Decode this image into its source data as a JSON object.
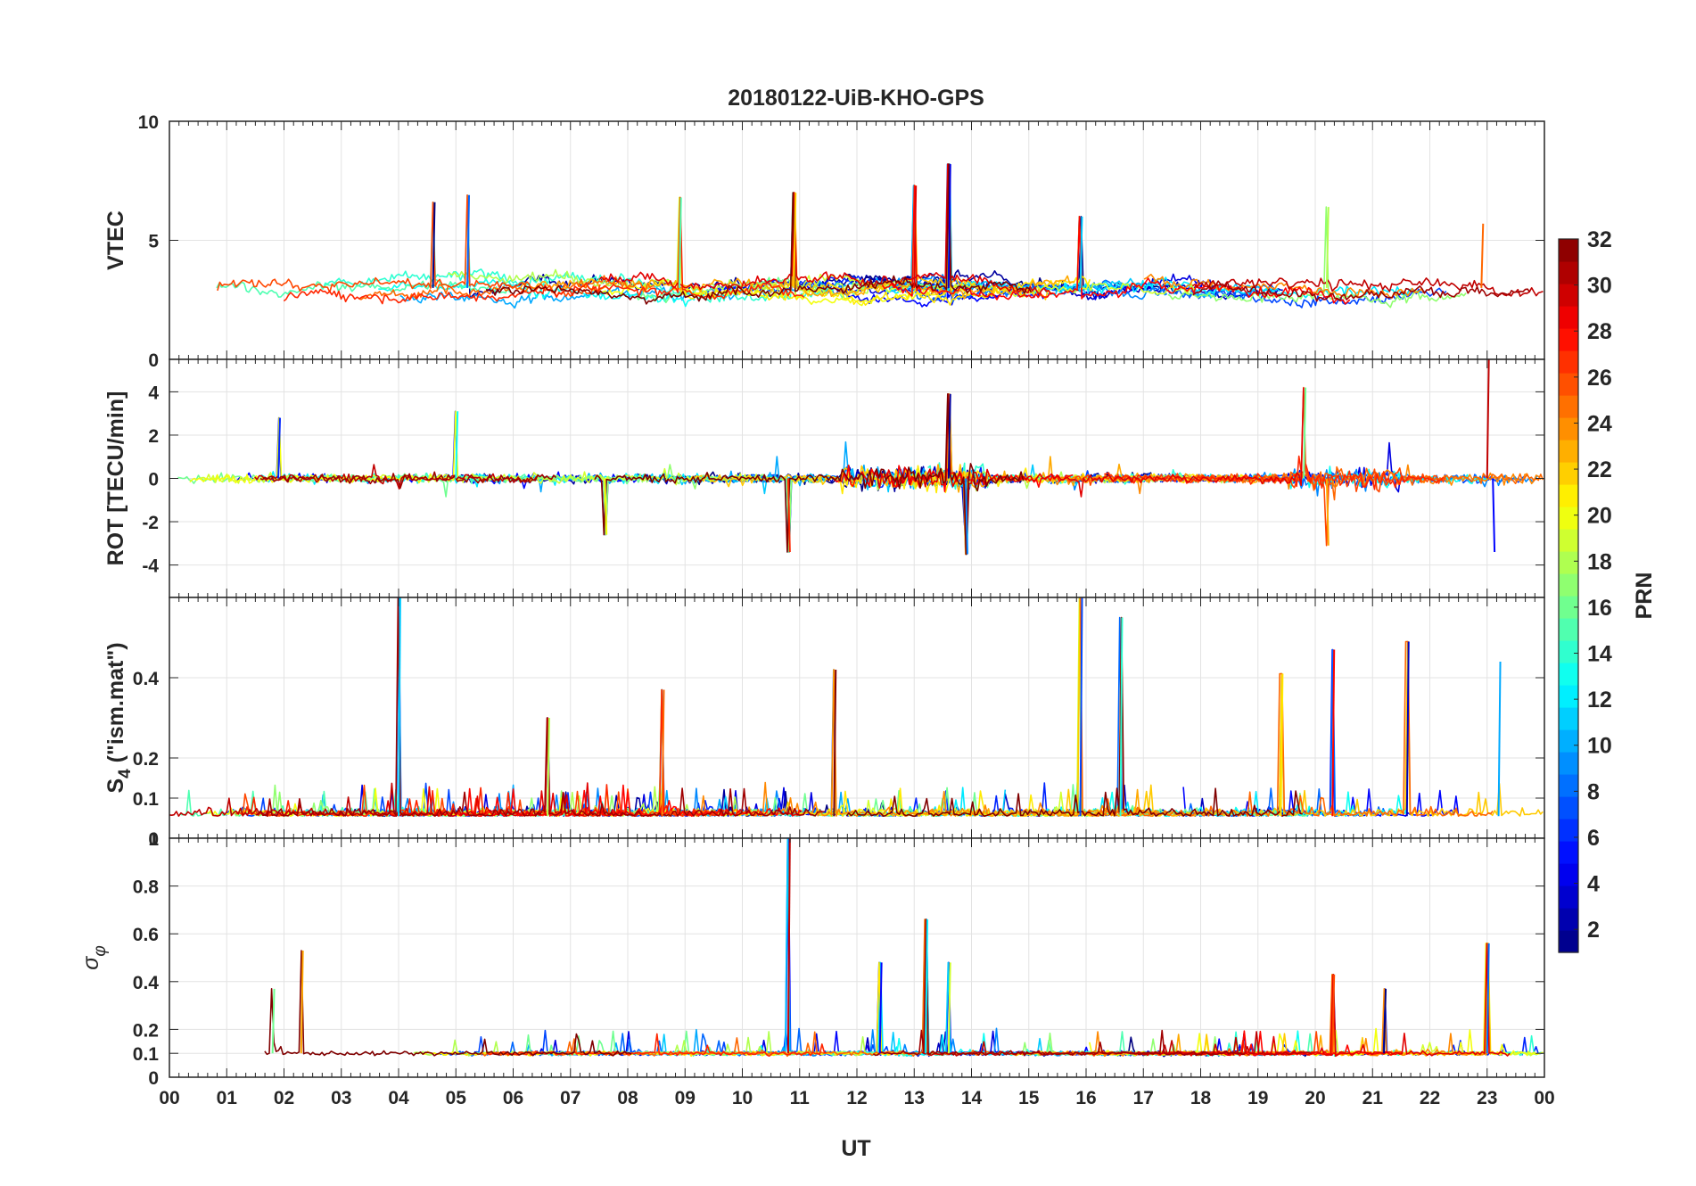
{
  "chart_data": {
    "type": "line",
    "title": "20180122-UiB-KHO-GPS",
    "xlabel": "UT",
    "x_range": [
      0,
      24
    ],
    "x_tick_labels": [
      "00",
      "01",
      "02",
      "03",
      "04",
      "05",
      "06",
      "07",
      "08",
      "09",
      "10",
      "11",
      "12",
      "13",
      "14",
      "15",
      "16",
      "17",
      "18",
      "19",
      "20",
      "21",
      "22",
      "23",
      "00"
    ],
    "grid": true,
    "colorbar": {
      "label": "PRN",
      "range": [
        1,
        32
      ],
      "tick_labels": [
        "2",
        "4",
        "6",
        "8",
        "10",
        "12",
        "14",
        "16",
        "18",
        "20",
        "22",
        "24",
        "26",
        "28",
        "30",
        "32"
      ],
      "colormap": [
        "#00008f",
        "#0000ff",
        "#0080ff",
        "#00ffff",
        "#80ff80",
        "#ffff00",
        "#ff8000",
        "#ff0000",
        "#800000"
      ]
    },
    "panels": [
      {
        "id": "vtec",
        "ylabel": "VTEC",
        "ylim": [
          0,
          10
        ],
        "y_ticks": [
          0,
          5,
          10
        ],
        "y_tick_labels": [
          "0",
          "5",
          "10"
        ],
        "baseline": 3.0,
        "spikes": [
          {
            "t": 4.6,
            "v": 6.6
          },
          {
            "t": 5.2,
            "v": 6.9
          },
          {
            "t": 8.9,
            "v": 6.8
          },
          {
            "t": 10.9,
            "v": 7.0
          },
          {
            "t": 13.0,
            "v": 7.3
          },
          {
            "t": 13.6,
            "v": 8.2
          },
          {
            "t": 15.9,
            "v": 6.0
          },
          {
            "t": 20.2,
            "v": 6.4
          },
          {
            "t": 22.9,
            "v": 5.7
          }
        ]
      },
      {
        "id": "rot",
        "ylabel": "ROT [TECU/min]",
        "ylim": [
          -5.5,
          5.5
        ],
        "y_ticks": [
          -4,
          -2,
          0,
          2,
          4
        ],
        "y_tick_labels": [
          "-4",
          "-2",
          "0",
          "2",
          "4"
        ],
        "baseline": 0,
        "spikes": [
          {
            "t": 1.9,
            "v": 2.8
          },
          {
            "t": 5.0,
            "v": 3.1
          },
          {
            "t": 7.6,
            "v": -2.6
          },
          {
            "t": 10.8,
            "v": -3.4
          },
          {
            "t": 13.6,
            "v": 3.9
          },
          {
            "t": 13.9,
            "v": -3.5
          },
          {
            "t": 19.8,
            "v": 4.2
          },
          {
            "t": 20.2,
            "v": -3.1
          },
          {
            "t": 23.0,
            "v": 5.5
          },
          {
            "t": 23.1,
            "v": -3.4
          }
        ]
      },
      {
        "id": "s4",
        "ylabel": "S4 (\"ism.mat\")",
        "ylabel_main": "S",
        "ylabel_sub": "4",
        "ylabel_rest": " (\"ism.mat\")",
        "ylim": [
          0,
          0.6
        ],
        "y_ticks": [
          0,
          0.1,
          0.2,
          0.4
        ],
        "y_tick_labels": [
          "0",
          "0.1",
          "0.2",
          "0.4"
        ],
        "baseline": 0.055,
        "spikes": [
          {
            "t": 4.0,
            "v": 0.6
          },
          {
            "t": 6.6,
            "v": 0.3
          },
          {
            "t": 8.6,
            "v": 0.37
          },
          {
            "t": 11.6,
            "v": 0.42
          },
          {
            "t": 15.9,
            "v": 0.6
          },
          {
            "t": 16.6,
            "v": 0.55
          },
          {
            "t": 19.4,
            "v": 0.41
          },
          {
            "t": 20.3,
            "v": 0.47
          },
          {
            "t": 21.6,
            "v": 0.49
          },
          {
            "t": 23.2,
            "v": 0.44
          }
        ]
      },
      {
        "id": "sigma_phi",
        "ylabel": "σφ",
        "ylabel_main": "σ",
        "ylabel_sub": "φ",
        "ylim": [
          0,
          1.0
        ],
        "y_ticks": [
          0,
          0.1,
          0.2,
          0.4,
          0.6,
          0.8
        ],
        "y_tick_labels": [
          "0",
          "0.1",
          "0.2",
          "0.4",
          "0.6",
          "0.8"
        ],
        "top_tick_label": "1",
        "baseline": 0.1,
        "spikes": [
          {
            "t": 1.8,
            "v": 0.37
          },
          {
            "t": 2.3,
            "v": 0.53
          },
          {
            "t": 10.8,
            "v": 1.0
          },
          {
            "t": 12.4,
            "v": 0.48
          },
          {
            "t": 13.2,
            "v": 0.66
          },
          {
            "t": 13.6,
            "v": 0.48
          },
          {
            "t": 20.3,
            "v": 0.43
          },
          {
            "t": 21.2,
            "v": 0.37
          },
          {
            "t": 23.0,
            "v": 0.56
          }
        ]
      }
    ]
  }
}
